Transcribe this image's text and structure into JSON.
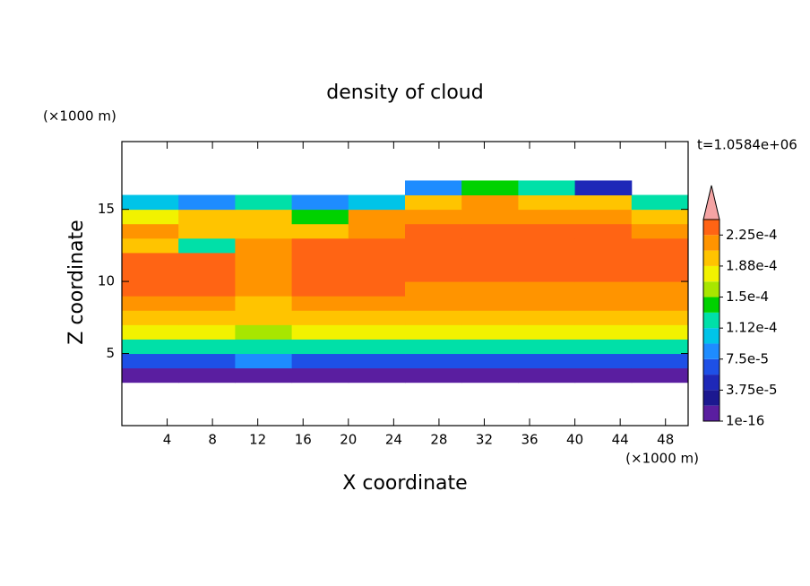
{
  "chart_data": {
    "type": "contour",
    "title": "density of cloud",
    "xlabel": "X coordinate",
    "ylabel": "Z coordinate",
    "x_unit": "(×1000 m)",
    "y_unit": "(×1000 m)",
    "time_label": "t=1.0584e+06",
    "xlim": [
      0,
      50
    ],
    "ylim": [
      0,
      19.7
    ],
    "xticks": [
      4,
      8,
      12,
      16,
      20,
      24,
      28,
      32,
      36,
      40,
      44,
      48
    ],
    "yticks": [
      5,
      10,
      15
    ],
    "x_edges": [
      0,
      5,
      10,
      15,
      20,
      25,
      30,
      35,
      40,
      45,
      50
    ],
    "z_edges": [
      3,
      4,
      5,
      6,
      7,
      8,
      9,
      10,
      11,
      12,
      13,
      14,
      15,
      16,
      17
    ],
    "z": [
      [
        1e-05,
        1e-05,
        1e-05,
        1e-05,
        1e-05,
        1e-05,
        1e-05,
        1e-05,
        1e-05,
        1e-05
      ],
      [
        6.5e-05,
        6.5e-05,
        9e-05,
        6.5e-05,
        6.5e-05,
        6.5e-05,
        6.5e-05,
        6.5e-05,
        6.5e-05,
        6.5e-05
      ],
      [
        0.00012,
        0.00012,
        0.00013,
        0.00012,
        0.00012,
        0.00012,
        0.00012,
        0.00012,
        0.00012,
        0.00012
      ],
      [
        0.00017,
        0.00017,
        0.00016,
        0.00017,
        0.00017,
        0.00017,
        0.00017,
        0.00017,
        0.00017,
        0.00017
      ],
      [
        0.000195,
        0.000195,
        0.00019,
        0.000195,
        0.000195,
        0.000195,
        0.000195,
        0.000195,
        0.000195,
        0.000195
      ],
      [
        0.00021,
        0.00021,
        0.0002,
        0.00021,
        0.00021,
        0.00021,
        0.00021,
        0.00021,
        0.00021,
        0.00021
      ],
      [
        0.00023,
        0.00023,
        0.00021,
        0.00023,
        0.00023,
        0.00022,
        0.00022,
        0.00022,
        0.00022,
        0.00022
      ],
      [
        0.00023,
        0.00023,
        0.00021,
        0.00023,
        0.00023,
        0.00023,
        0.00023,
        0.00023,
        0.00023,
        0.00023
      ],
      [
        0.00023,
        0.00023,
        0.00022,
        0.00023,
        0.00023,
        0.00023,
        0.00023,
        0.00023,
        0.00023,
        0.00023
      ],
      [
        0.0002,
        0.00013,
        0.00022,
        0.00023,
        0.00023,
        0.00023,
        0.00023,
        0.00023,
        0.00023,
        0.00023
      ],
      [
        0.00021,
        0.00019,
        0.0002,
        0.00019,
        0.00022,
        0.00023,
        0.00023,
        0.00023,
        0.000225,
        0.00022
      ],
      [
        0.00017,
        0.0002,
        0.00019,
        0.00014,
        0.00021,
        0.00022,
        0.000215,
        0.00021,
        0.00021,
        0.00019
      ],
      [
        0.0001,
        9e-05,
        0.00013,
        8e-05,
        0.0001,
        0.0002,
        0.00021,
        0.000205,
        0.000195,
        0.00012
      ],
      [
        null,
        null,
        null,
        null,
        null,
        8e-05,
        0.00014,
        0.00012,
        5e-05,
        null
      ]
    ],
    "levels": [
      1e-16,
      1.875e-05,
      3.75e-05,
      5.625e-05,
      7.5e-05,
      9.375e-05,
      0.0001125,
      0.00013125,
      0.00015,
      0.00016875,
      0.0001875,
      0.00020625,
      0.000225,
      0.00024375
    ],
    "colors": [
      "#5a1ea0",
      "#1c1890",
      "#1e28b8",
      "#1e50e6",
      "#1e8cff",
      "#00c4e8",
      "#00e0a8",
      "#00d200",
      "#a8e600",
      "#f2f200",
      "#ffc400",
      "#ff9400",
      "#ff6414"
    ],
    "extend_color": "#f4a4a4",
    "cbticks": [
      {
        "value": 1e-16,
        "label": "1e-16"
      },
      {
        "value": 3.75e-05,
        "label": "3.75e-5"
      },
      {
        "value": 7.5e-05,
        "label": "7.5e-5"
      },
      {
        "value": 0.0001125,
        "label": "1.12e-4"
      },
      {
        "value": 0.00015,
        "label": "1.5e-4"
      },
      {
        "value": 0.0001875,
        "label": "1.88e-4"
      },
      {
        "value": 0.000225,
        "label": "2.25e-4"
      }
    ]
  }
}
